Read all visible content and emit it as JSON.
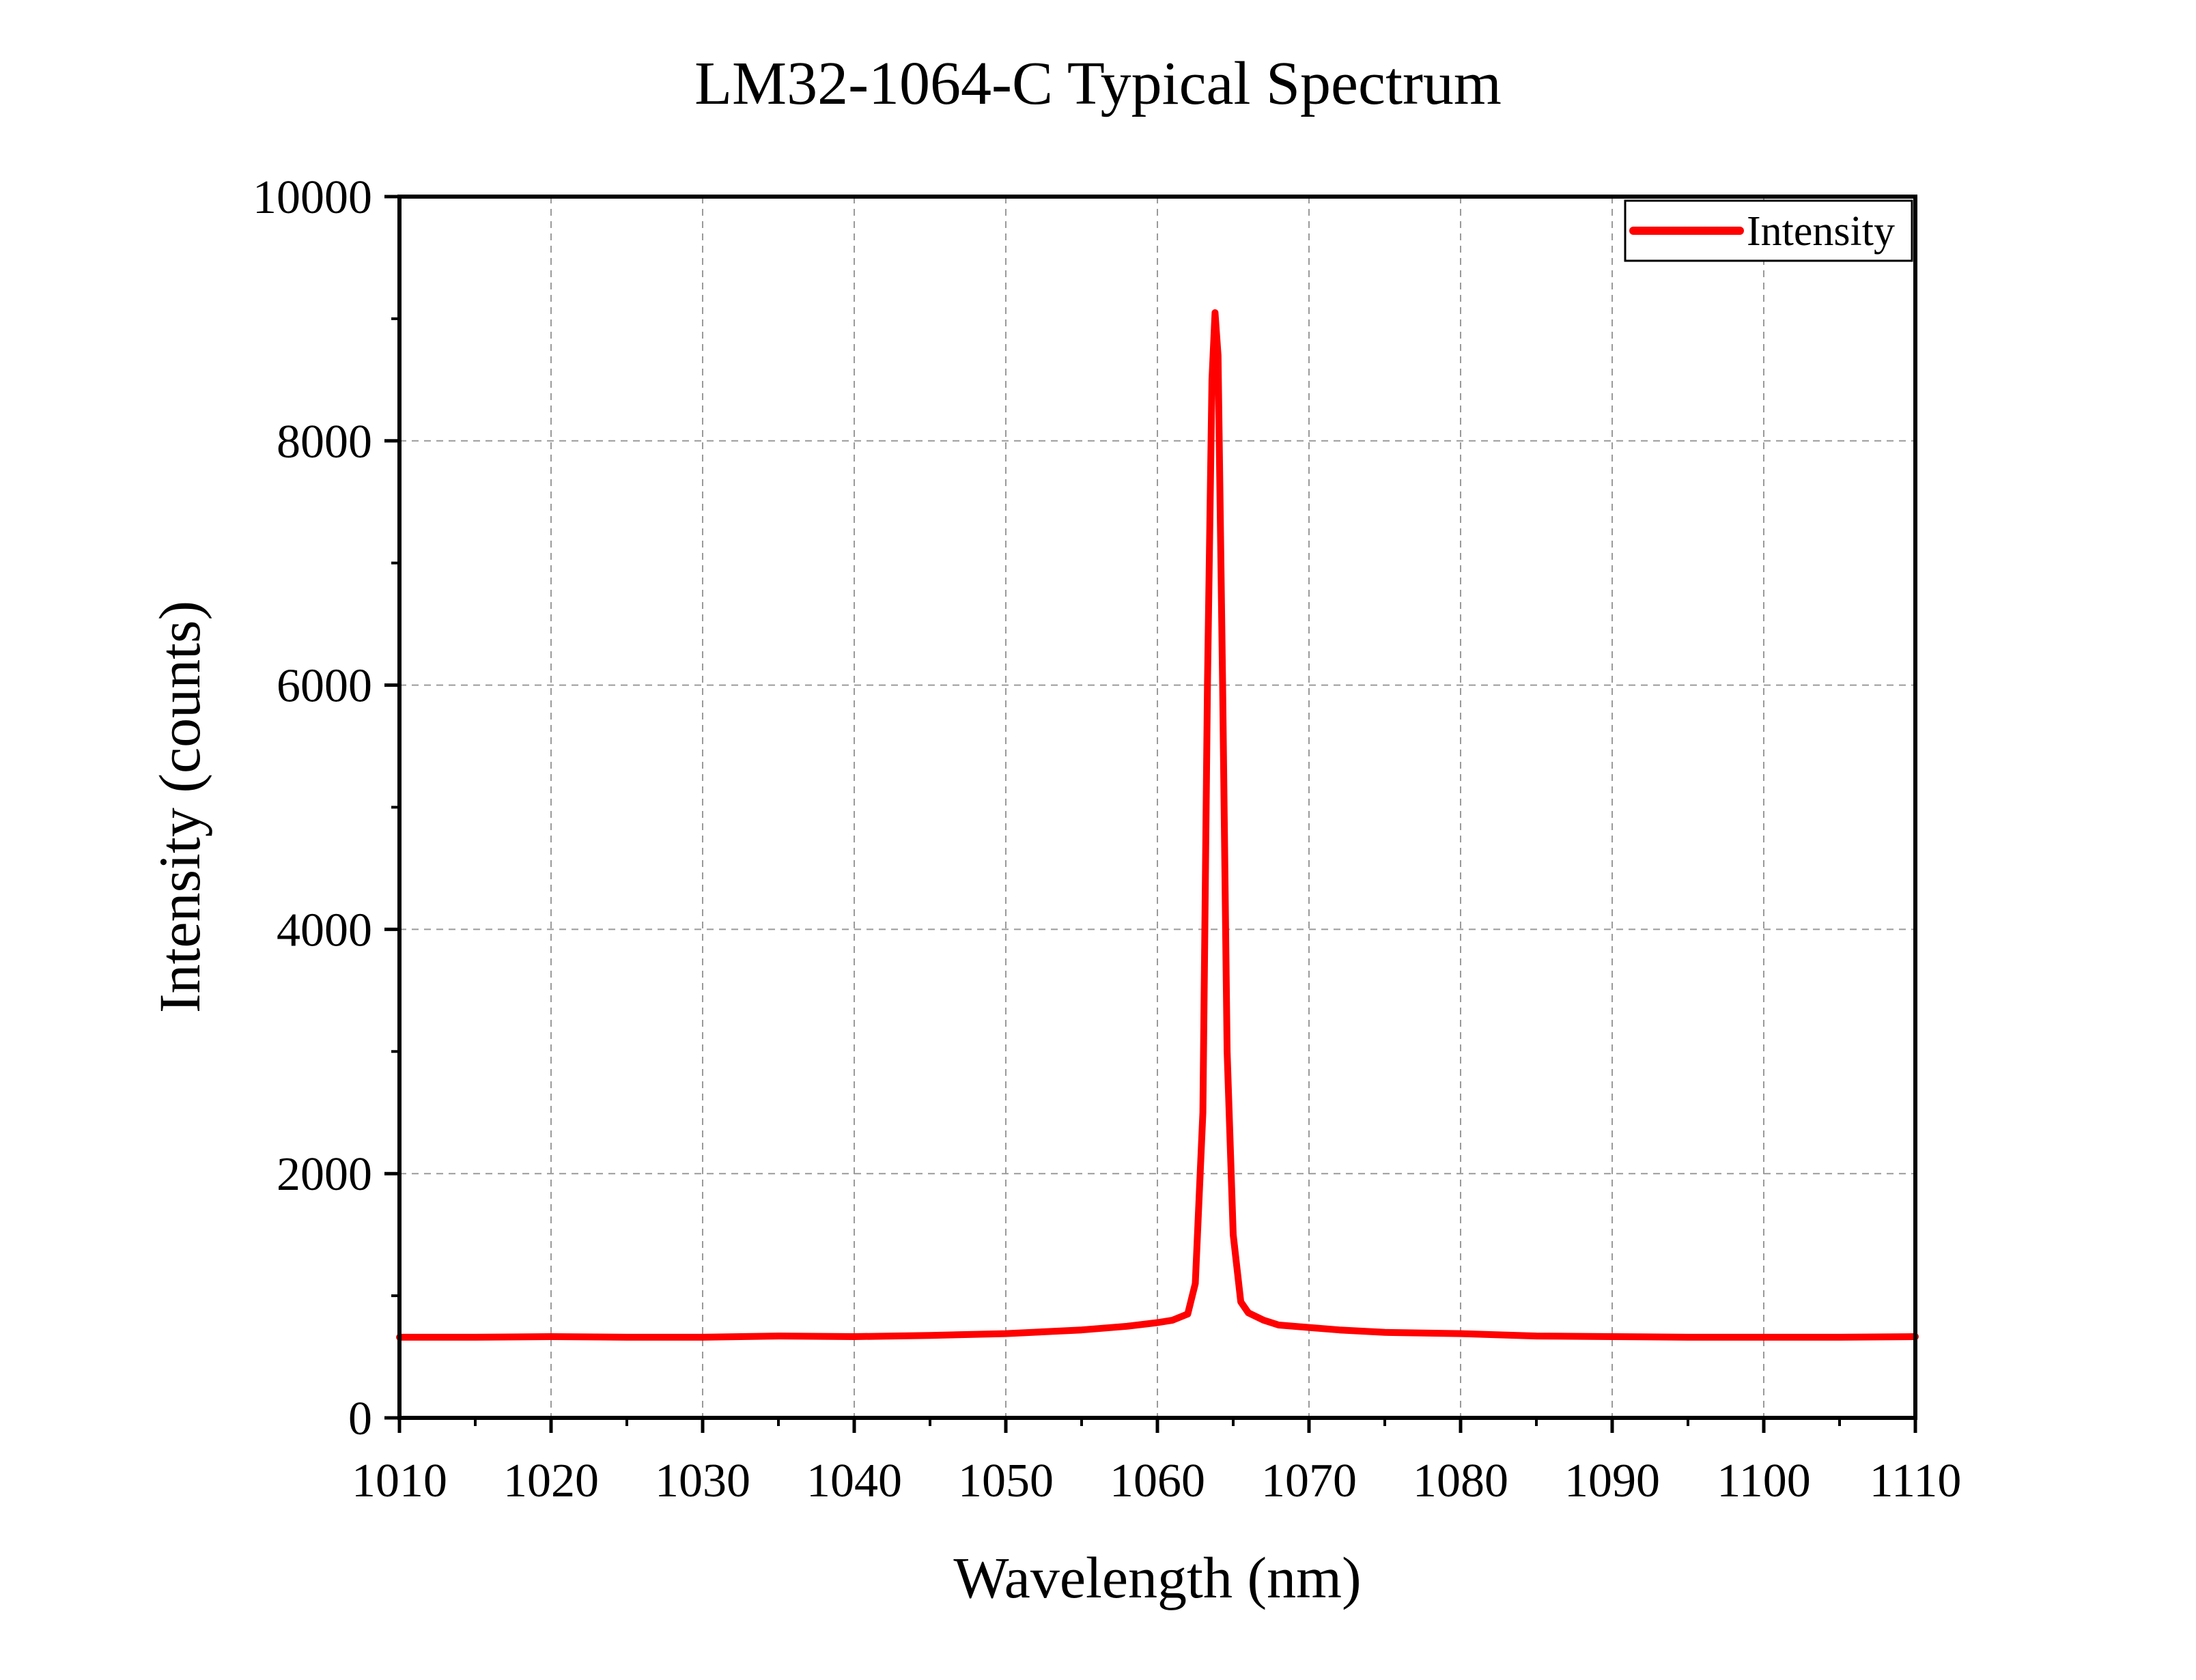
{
  "chart_data": {
    "type": "line",
    "title": "LM32-1064-C Typical Spectrum",
    "xlabel": "Wavelength (nm)",
    "ylabel": "Intensity (counts)",
    "xlim": [
      1010,
      1110
    ],
    "ylim": [
      0,
      10000
    ],
    "x_ticks": [
      1010,
      1020,
      1030,
      1040,
      1050,
      1060,
      1070,
      1080,
      1090,
      1100,
      1110
    ],
    "y_ticks": [
      0,
      2000,
      4000,
      6000,
      8000,
      10000
    ],
    "grid": true,
    "grid_style": "dashed",
    "legend_position": "top-right",
    "series": [
      {
        "name": "Intensity",
        "color": "#ff0000",
        "x": [
          1010,
          1015,
          1020,
          1025,
          1030,
          1035,
          1040,
          1045,
          1050,
          1055,
          1058,
          1060,
          1061,
          1062,
          1062.5,
          1063,
          1063.3,
          1063.6,
          1063.8,
          1064,
          1064.3,
          1064.6,
          1065,
          1065.5,
          1066,
          1067,
          1068,
          1070,
          1072,
          1075,
          1080,
          1085,
          1090,
          1095,
          1100,
          1105,
          1110
        ],
        "y": [
          660,
          660,
          665,
          660,
          660,
          670,
          665,
          675,
          690,
          720,
          750,
          780,
          800,
          850,
          1100,
          2500,
          6000,
          8500,
          9050,
          8700,
          6000,
          3000,
          1500,
          950,
          860,
          800,
          760,
          740,
          720,
          700,
          690,
          670,
          665,
          660,
          660,
          660,
          665
        ]
      }
    ]
  }
}
